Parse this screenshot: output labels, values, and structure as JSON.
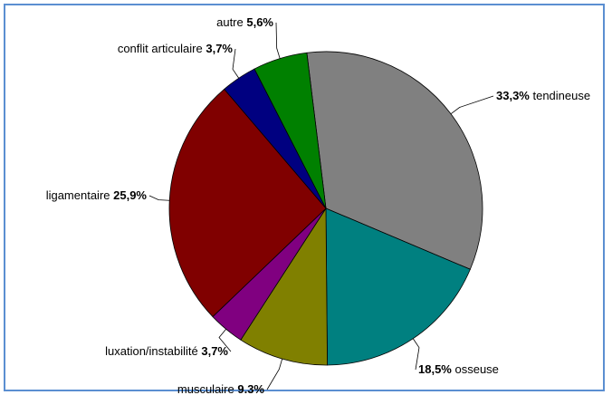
{
  "chart_data": {
    "type": "pie",
    "title": "",
    "slices": [
      {
        "label": "tendineuse",
        "value": 33.3,
        "text": "33,3%",
        "color": "#808080",
        "label_side": "right"
      },
      {
        "label": "osseuse",
        "value": 18.5,
        "text": "18,5%",
        "color": "#008080",
        "label_side": "right"
      },
      {
        "label": "musculaire",
        "value": 9.3,
        "text": "9,3%",
        "color": "#808000",
        "label_side": "left"
      },
      {
        "label": "luxation/instabilité",
        "value": 3.7,
        "text": "3,7%",
        "color": "#800080",
        "label_side": "left"
      },
      {
        "label": "ligamentaire",
        "value": 25.9,
        "text": "25,9%",
        "color": "#800000",
        "label_side": "left"
      },
      {
        "label": "conflit articulaire",
        "value": 3.7,
        "text": "3,7%",
        "color": "#000080",
        "label_side": "left"
      },
      {
        "label": "autre",
        "value": 5.6,
        "text": "5,6%",
        "color": "#008000",
        "label_side": "left"
      }
    ],
    "start_angle_deg": -7,
    "direction": "clockwise",
    "legend": "none"
  }
}
